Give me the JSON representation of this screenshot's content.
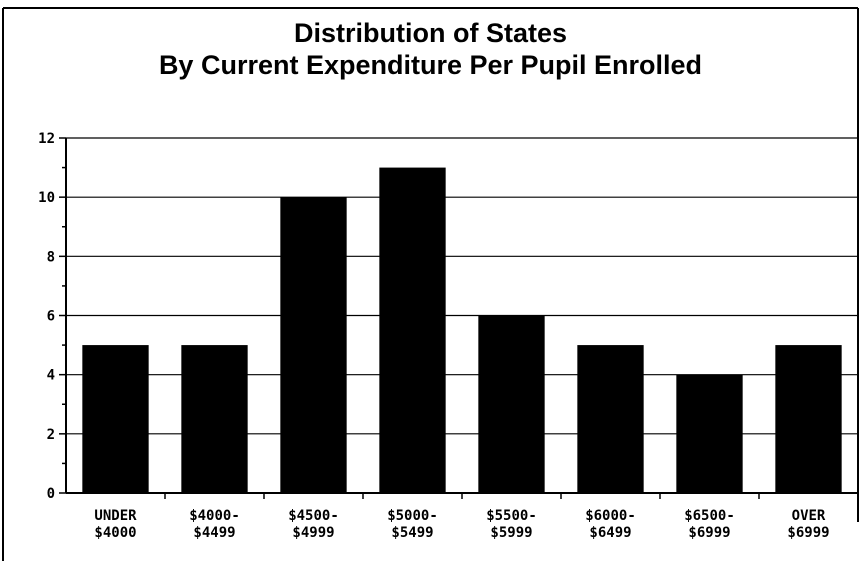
{
  "chart_data": {
    "type": "bar",
    "title_lines": [
      "Distribution of States",
      "By Current Expenditure Per Pupil Enrolled"
    ],
    "categories": [
      [
        "UNDER",
        "$4000"
      ],
      [
        "$4000-",
        "$4499"
      ],
      [
        "$4500-",
        "$4999"
      ],
      [
        "$5000-",
        "$5499"
      ],
      [
        "$5500-",
        "$5999"
      ],
      [
        "$6000-",
        "$6499"
      ],
      [
        "$6500-",
        "$6999"
      ],
      [
        "OVER",
        "$6999"
      ]
    ],
    "values": [
      5,
      5,
      10,
      11,
      6,
      5,
      4,
      5
    ],
    "ylim": [
      0,
      12
    ],
    "yticks": [
      0,
      2,
      4,
      6,
      8,
      10,
      12
    ],
    "grid": true,
    "colors": {
      "bar": "#000000",
      "grid": "#000000",
      "background": "#ffffff"
    }
  }
}
